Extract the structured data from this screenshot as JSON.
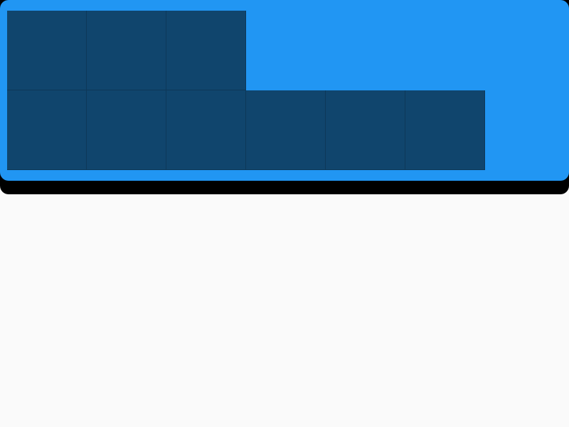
{
  "colors": {
    "page_background": "#fafafa",
    "banner_background": "#2196f3",
    "banner_shadow": "#000000",
    "tile": "#10456d"
  },
  "grid": {
    "rows": [
      [
        true,
        true,
        true,
        false,
        false,
        false
      ],
      [
        true,
        true,
        true,
        true,
        true,
        true
      ]
    ]
  }
}
